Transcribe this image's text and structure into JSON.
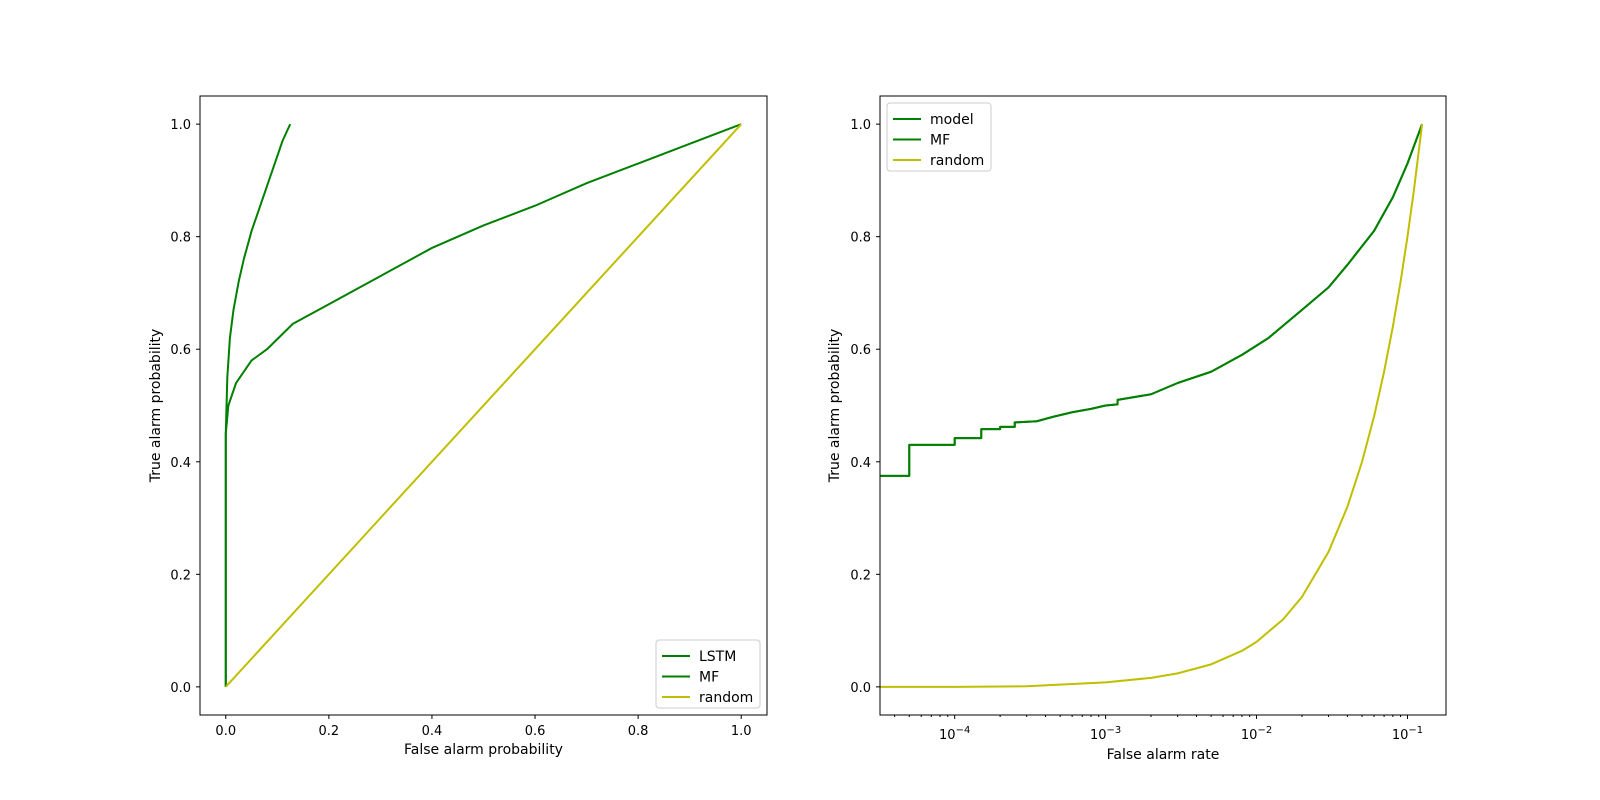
{
  "chart_data": [
    {
      "type": "line",
      "xlabel": "False alarm probability",
      "ylabel": "True alarm probability",
      "xlim": [
        -0.05,
        1.05
      ],
      "ylim": [
        -0.05,
        1.05
      ],
      "xscale": "linear",
      "xticks": [
        0.0,
        0.2,
        0.4,
        0.6,
        0.8,
        1.0
      ],
      "xtick_labels": [
        "0.0",
        "0.2",
        "0.4",
        "0.6",
        "0.8",
        "1.0"
      ],
      "yticks": [
        0.0,
        0.2,
        0.4,
        0.6,
        0.8,
        1.0
      ],
      "ytick_labels": [
        "0.0",
        "0.2",
        "0.4",
        "0.6",
        "0.8",
        "1.0"
      ],
      "legend_position": "lower-right",
      "series": [
        {
          "name": "LSTM",
          "color": "#008000",
          "x": [
            0,
            0,
            0.003,
            0.008,
            0.015,
            0.025,
            0.035,
            0.05,
            0.065,
            0.08,
            0.095,
            0.11,
            0.125
          ],
          "y": [
            0,
            0.45,
            0.55,
            0.62,
            0.67,
            0.72,
            0.76,
            0.81,
            0.85,
            0.89,
            0.93,
            0.97,
            1.0
          ]
        },
        {
          "name": "MF",
          "color": "#008000",
          "x": [
            0,
            0,
            0.005,
            0.02,
            0.05,
            0.08,
            0.13,
            0.2,
            0.3,
            0.4,
            0.5,
            0.6,
            0.7,
            0.8,
            0.9,
            1.0
          ],
          "y": [
            0,
            0.45,
            0.5,
            0.54,
            0.58,
            0.6,
            0.645,
            0.68,
            0.73,
            0.78,
            0.82,
            0.855,
            0.895,
            0.93,
            0.965,
            1.0
          ]
        },
        {
          "name": "random",
          "color": "#bfbf00",
          "x": [
            0,
            1
          ],
          "y": [
            0,
            1
          ]
        }
      ]
    },
    {
      "type": "line",
      "xlabel": "False alarm rate",
      "ylabel": "True alarm probability",
      "xlim": [
        3.2e-05,
        0.18
      ],
      "ylim": [
        -0.05,
        1.05
      ],
      "xscale": "log",
      "xticks": [
        0.0001,
        0.001,
        0.01,
        0.1
      ],
      "xtick_labels": [
        {
          "base": "10",
          "exp": "−4"
        },
        {
          "base": "10",
          "exp": "−3"
        },
        {
          "base": "10",
          "exp": "−2"
        },
        {
          "base": "10",
          "exp": "−1"
        }
      ],
      "yticks": [
        0.0,
        0.2,
        0.4,
        0.6,
        0.8,
        1.0
      ],
      "ytick_labels": [
        "0.0",
        "0.2",
        "0.4",
        "0.6",
        "0.8",
        "1.0"
      ],
      "legend_position": "upper-left",
      "series": [
        {
          "name": "model",
          "color": "#008000",
          "x": [
            3.2e-05,
            5e-05,
            5e-05,
            0.0001,
            0.0001,
            0.00015,
            0.00015,
            0.0002,
            0.0002,
            0.00025,
            0.00025,
            0.00035,
            0.00045,
            0.0006,
            0.0008,
            0.001,
            0.0012,
            0.0012,
            0.002,
            0.003,
            0.005,
            0.008,
            0.012,
            0.02,
            0.03,
            0.04,
            0.06,
            0.08,
            0.1,
            0.125
          ],
          "y": [
            0.375,
            0.375,
            0.43,
            0.43,
            0.442,
            0.442,
            0.458,
            0.458,
            0.462,
            0.462,
            0.47,
            0.472,
            0.48,
            0.488,
            0.494,
            0.5,
            0.502,
            0.51,
            0.52,
            0.54,
            0.56,
            0.59,
            0.62,
            0.67,
            0.71,
            0.75,
            0.81,
            0.87,
            0.93,
            1.0
          ]
        },
        {
          "name": "MF",
          "color": "#008000",
          "x": [
            3.2e-05,
            5e-05,
            5e-05,
            0.0001,
            0.0001,
            0.00015,
            0.00015,
            0.0002,
            0.0002,
            0.00025,
            0.00025,
            0.00035,
            0.00045,
            0.0006,
            0.0008,
            0.001,
            0.0012,
            0.0012,
            0.002,
            0.003,
            0.005,
            0.008,
            0.012,
            0.02,
            0.03,
            0.04,
            0.06,
            0.08,
            0.1,
            0.125
          ],
          "y": [
            0.375,
            0.375,
            0.43,
            0.43,
            0.442,
            0.442,
            0.458,
            0.458,
            0.462,
            0.462,
            0.47,
            0.472,
            0.48,
            0.488,
            0.494,
            0.5,
            0.502,
            0.51,
            0.52,
            0.54,
            0.56,
            0.59,
            0.62,
            0.67,
            0.71,
            0.75,
            0.81,
            0.87,
            0.93,
            1.0
          ]
        },
        {
          "name": "random",
          "color": "#bfbf00",
          "x": [
            3.2e-05,
            0.0001,
            0.0003,
            0.001,
            0.002,
            0.003,
            0.005,
            0.008,
            0.01,
            0.015,
            0.02,
            0.03,
            0.04,
            0.05,
            0.06,
            0.07,
            0.08,
            0.09,
            0.1,
            0.11,
            0.125
          ],
          "y": [
            0.0,
            0.0,
            0.001,
            0.008,
            0.016,
            0.024,
            0.04,
            0.064,
            0.08,
            0.12,
            0.16,
            0.24,
            0.32,
            0.4,
            0.48,
            0.56,
            0.64,
            0.72,
            0.8,
            0.88,
            1.0
          ]
        }
      ]
    }
  ]
}
